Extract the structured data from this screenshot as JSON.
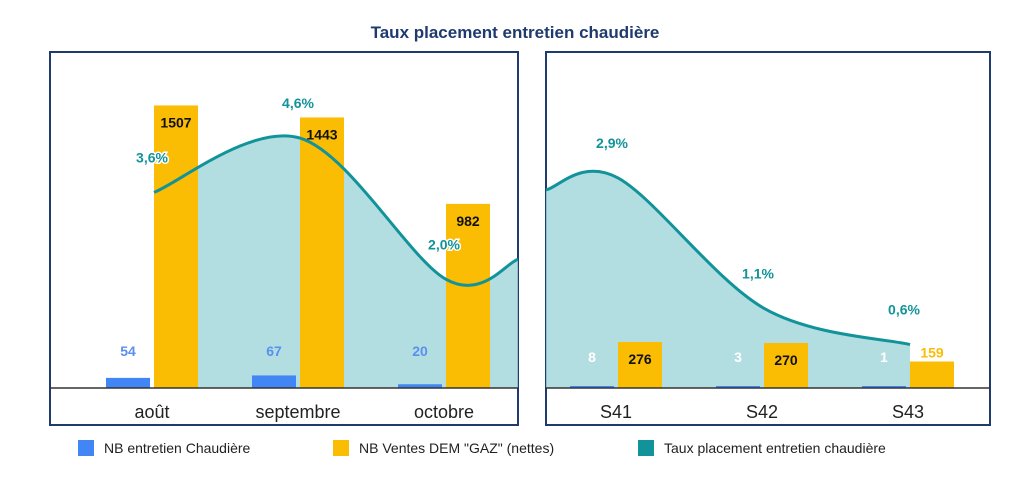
{
  "chart_data": {
    "type": "bar",
    "title": "Taux placement entretien chaudière",
    "colors": {
      "entretien": "#4285F4",
      "ventes": "#FBBC04",
      "taux": "#12939A",
      "area": "#A6D8DC",
      "frame": "#1F3A6E",
      "title": "#1F3A6E"
    },
    "legend": [
      {
        "key": "entretien",
        "label": "NB entretien Chaudière"
      },
      {
        "key": "ventes",
        "label": "NB Ventes DEM \"GAZ\" (nettes)"
      },
      {
        "key": "taux",
        "label": "Taux placement entretien chaudière"
      }
    ],
    "legend_position": "bottom",
    "panels": [
      {
        "name": "mois",
        "categories": [
          "août",
          "septembre",
          "octobre"
        ],
        "series": [
          {
            "name": "NB entretien Chaudière",
            "key": "entretien",
            "values": [
              54,
              67,
              20
            ],
            "labels": [
              "54",
              "67",
              "20"
            ]
          },
          {
            "name": "NB Ventes DEM \"GAZ\" (nettes)",
            "key": "ventes",
            "values": [
              1507,
              1443,
              982
            ],
            "labels": [
              "1507",
              "1443",
              "982"
            ]
          },
          {
            "name": "Taux placement entretien chaudière",
            "key": "taux",
            "values": [
              3.6,
              4.6,
              2.0
            ],
            "labels": [
              "3,6%",
              "4,6%",
              "2,0%"
            ]
          }
        ],
        "ylim": [
          0,
          1600
        ],
        "rate_ylim": [
          0,
          6
        ]
      },
      {
        "name": "semaines",
        "categories": [
          "S41",
          "S42",
          "S43"
        ],
        "series": [
          {
            "name": "NB entretien Chaudière",
            "key": "entretien",
            "values": [
              8,
              3,
              1
            ],
            "labels": [
              "8",
              "3",
              "1"
            ]
          },
          {
            "name": "NB Ventes DEM \"GAZ\" (nettes)",
            "key": "ventes",
            "values": [
              276,
              270,
              159
            ],
            "labels": [
              "276",
              "270",
              "159"
            ]
          },
          {
            "name": "Taux placement entretien chaudière",
            "key": "taux",
            "values": [
              2.9,
              1.1,
              0.6
            ],
            "labels": [
              "2,9%",
              "1,1%",
              "0,6%"
            ]
          }
        ],
        "ylim": [
          0,
          1800
        ],
        "rate_ylim": [
          0,
          4.5
        ]
      }
    ]
  }
}
